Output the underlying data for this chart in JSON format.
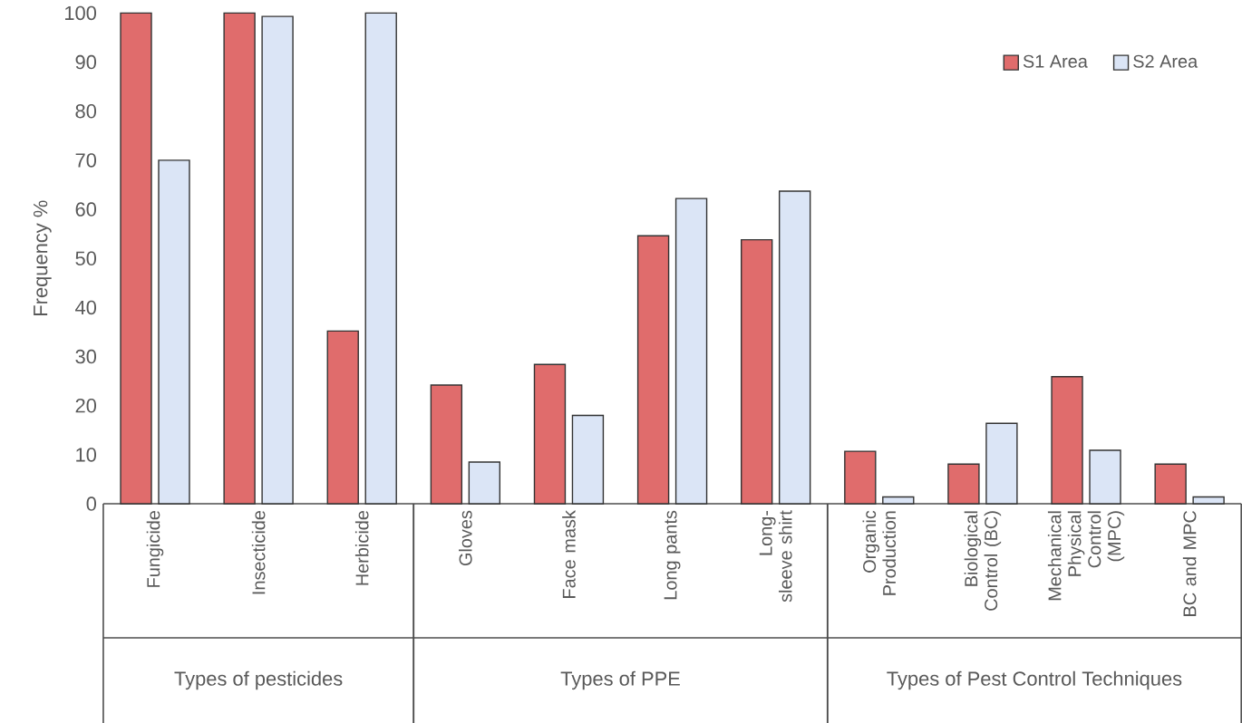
{
  "chart_data": {
    "type": "bar",
    "ylabel": "Frequency %",
    "categories": [
      "Fungicide",
      "Insecticide",
      "Herbicide",
      "Gloves",
      "Face mask",
      "Long pants",
      "Long-sleeve shirt",
      "Organic Production",
      "Biological Control (BC)",
      "Mechanical Physical Control (MPC)",
      "BC and MPC"
    ],
    "series": [
      {
        "name": "S1 Area",
        "color": "#e06c6c",
        "values": [
          100,
          100,
          35.2,
          24.2,
          28.4,
          54.6,
          53.8,
          10.7,
          8.1,
          25.9,
          8.1
        ]
      },
      {
        "name": "S2 Area",
        "color": "#dbe5f6",
        "values": [
          70.0,
          99.3,
          100,
          8.5,
          18.0,
          62.2,
          63.7,
          1.4,
          16.4,
          10.9,
          1.4
        ]
      }
    ],
    "ylim": [
      0,
      100
    ],
    "yticks": [
      0,
      10,
      20,
      30,
      40,
      50,
      60,
      70,
      80,
      90,
      100
    ],
    "legend": "top right",
    "grid": false,
    "annotations": [
      "Types of pesticides",
      "Types of PPE",
      "Types of Pest Control Techniques"
    ]
  }
}
